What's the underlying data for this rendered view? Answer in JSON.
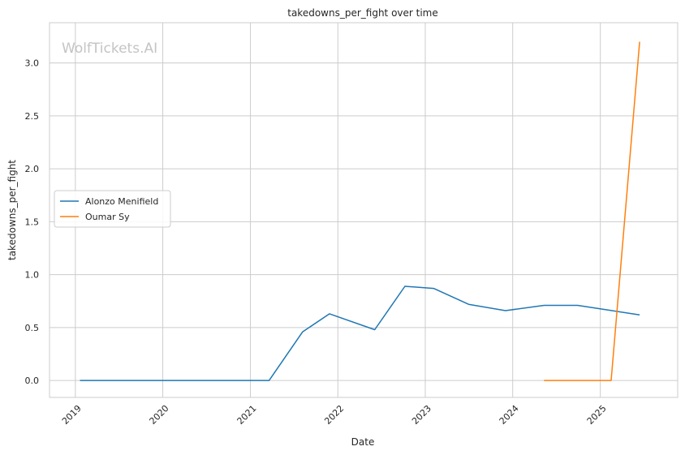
{
  "chart_data": {
    "type": "line",
    "title": "takedowns_per_fight over time",
    "xlabel": "Date",
    "ylabel": "takedowns_per_fight",
    "watermark": "WolfTickets.AI",
    "xlim": [
      "2018-09-15",
      "2025-11-20"
    ],
    "ylim": [
      -0.16,
      3.38
    ],
    "x_ticks": [
      "2019-01-01",
      "2020-01-01",
      "2021-01-01",
      "2022-01-01",
      "2023-01-01",
      "2024-01-01",
      "2025-01-01"
    ],
    "x_tick_labels": [
      "2019",
      "2020",
      "2021",
      "2022",
      "2023",
      "2024",
      "2025"
    ],
    "y_ticks": [
      0.0,
      0.5,
      1.0,
      1.5,
      2.0,
      2.5,
      3.0
    ],
    "y_tick_labels": [
      "0.0",
      "0.5",
      "1.0",
      "1.5",
      "2.0",
      "2.5",
      "3.0"
    ],
    "grid": true,
    "legend_position": "center-left",
    "series": [
      {
        "name": "Alonzo Menifield",
        "color": "#1f77b4",
        "points": [
          {
            "x": "2019-01-20",
            "y": 0.0
          },
          {
            "x": "2021-03-20",
            "y": 0.0
          },
          {
            "x": "2021-08-07",
            "y": 0.46
          },
          {
            "x": "2021-11-27",
            "y": 0.63
          },
          {
            "x": "2022-06-04",
            "y": 0.48
          },
          {
            "x": "2022-10-08",
            "y": 0.89
          },
          {
            "x": "2023-02-05",
            "y": 0.87
          },
          {
            "x": "2023-07-01",
            "y": 0.72
          },
          {
            "x": "2023-12-02",
            "y": 0.66
          },
          {
            "x": "2024-05-11",
            "y": 0.71
          },
          {
            "x": "2024-09-28",
            "y": 0.71
          },
          {
            "x": "2025-06-14",
            "y": 0.62
          }
        ]
      },
      {
        "name": "Oumar Sy",
        "color": "#ff7f0e",
        "points": [
          {
            "x": "2024-05-11",
            "y": 0.0
          },
          {
            "x": "2025-02-15",
            "y": 0.0
          },
          {
            "x": "2025-06-14",
            "y": 3.2
          }
        ]
      }
    ]
  }
}
